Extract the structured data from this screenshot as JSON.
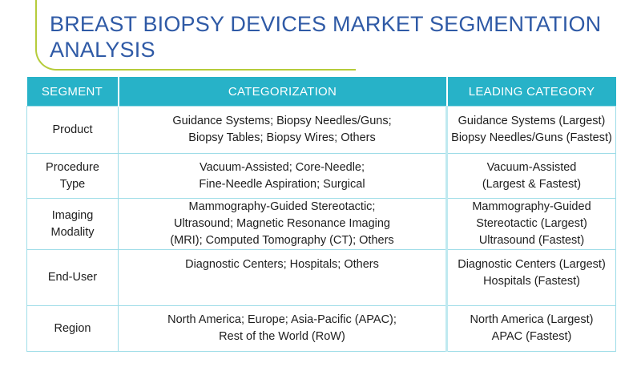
{
  "title": "BREAST BIOPSY DEVICES MARKET SEGMENTATION\nANALYSIS",
  "colors": {
    "title": "#2f5aa6",
    "header_background": "#27b2c8",
    "accent_line": "#b6cc3b",
    "cell_border": "#9fdde8"
  },
  "table": {
    "headers": [
      "SEGMENT",
      "CATEGORIZATION",
      "LEADING CATEGORY"
    ],
    "rows": [
      {
        "segment": "Product",
        "categorization": "Guidance Systems; Biopsy Needles/Guns;\nBiopsy Tables; Biopsy Wires; Others",
        "leading": "Guidance Systems (Largest)\nBiopsy Needles/Guns (Fastest)"
      },
      {
        "segment": "Procedure\nType",
        "categorization": "Vacuum-Assisted; Core-Needle;\nFine-Needle Aspiration; Surgical",
        "leading": "Vacuum-Assisted\n(Largest & Fastest)"
      },
      {
        "segment": "Imaging\nModality",
        "categorization": "Mammography-Guided Stereotactic;\nUltrasound; Magnetic Resonance Imaging\n(MRI); Computed Tomography (CT); Others",
        "leading": "Mammography-Guided\nStereotactic (Largest)\nUltrasound (Fastest)"
      },
      {
        "segment": "End-User",
        "categorization": "Diagnostic Centers; Hospitals; Others",
        "leading": "Diagnostic Centers (Largest)\nHospitals (Fastest)"
      },
      {
        "segment": "Region",
        "categorization": "North America; Europe; Asia-Pacific (APAC);\nRest of the World (RoW)",
        "leading": "North America (Largest)\nAPAC (Fastest)"
      }
    ]
  }
}
